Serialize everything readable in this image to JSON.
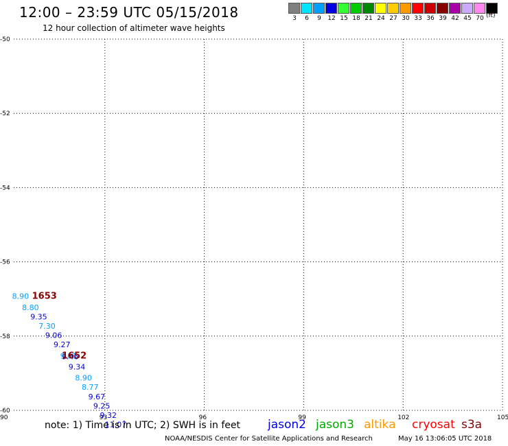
{
  "header": {
    "title": "12:00 – 23:59 UTC 05/15/2018",
    "subtitle": "12 hour collection of altimeter wave heights"
  },
  "legend": {
    "unit": "(ft)",
    "items": [
      {
        "label": "3",
        "color": "#808080"
      },
      {
        "label": "6",
        "color": "#00e5ff"
      },
      {
        "label": "9",
        "color": "#00a0ff"
      },
      {
        "label": "12",
        "color": "#0000e0"
      },
      {
        "label": "15",
        "color": "#33ff33"
      },
      {
        "label": "18",
        "color": "#00cc00"
      },
      {
        "label": "21",
        "color": "#008800"
      },
      {
        "label": "24",
        "color": "#ffff00"
      },
      {
        "label": "27",
        "color": "#ffcc00"
      },
      {
        "label": "30",
        "color": "#ff9900"
      },
      {
        "label": "33",
        "color": "#ff0000"
      },
      {
        "label": "36",
        "color": "#cc0000"
      },
      {
        "label": "39",
        "color": "#880000"
      },
      {
        "label": "42",
        "color": "#aa00aa"
      },
      {
        "label": "45",
        "color": "#ccaaff"
      },
      {
        "label": "70",
        "color": "#ff88ee"
      },
      {
        "label": "",
        "color": "#000000"
      }
    ]
  },
  "chart_data": {
    "type": "scatter",
    "title": "12:00 – 23:59 UTC 05/15/2018",
    "subtitle": "12 hour collection of altimeter wave heights",
    "xlim": [
      90,
      105
    ],
    "ylim": [
      -60,
      -50
    ],
    "x_ticks": [
      "90",
      "93",
      "96",
      "99",
      "102",
      "105"
    ],
    "y_ticks": [
      "-50",
      "-52",
      "-54",
      "-56",
      "-58",
      "-60"
    ],
    "grid": true,
    "points": [
      {
        "lon": 90.2,
        "lat": -57.0,
        "label": "8.90",
        "color": "#00a0ff"
      },
      {
        "lon": 90.5,
        "lat": -57.3,
        "label": "8.80",
        "color": "#00a0ff"
      },
      {
        "lon": 90.75,
        "lat": -57.55,
        "label": "9.35",
        "color": "#0000e0"
      },
      {
        "lon": 91.0,
        "lat": -57.8,
        "label": "7.30",
        "color": "#00a0ff"
      },
      {
        "lon": 91.2,
        "lat": -58.05,
        "label": "9.06",
        "color": "#0000e0"
      },
      {
        "lon": 91.45,
        "lat": -58.3,
        "label": "9.27",
        "color": "#0000e0"
      },
      {
        "lon": 91.65,
        "lat": -58.6,
        "label": "9.01",
        "color": "#00a0ff"
      },
      {
        "lon": 91.7,
        "lat": -58.62,
        "label": "9.46",
        "color": "#0000e0"
      },
      {
        "lon": 91.9,
        "lat": -58.9,
        "label": "9.34",
        "color": "#0000e0"
      },
      {
        "lon": 92.1,
        "lat": -59.2,
        "label": "8.90",
        "color": "#00a0ff"
      },
      {
        "lon": 92.3,
        "lat": -59.45,
        "label": "8.77",
        "color": "#00a0ff"
      },
      {
        "lon": 92.5,
        "lat": -59.7,
        "label": "9.67",
        "color": "#0000e0"
      },
      {
        "lon": 92.65,
        "lat": -59.95,
        "label": "9.25",
        "color": "#0000e0"
      },
      {
        "lon": 92.85,
        "lat": -60.2,
        "label": "9.32",
        "color": "#0000e0"
      },
      {
        "lon": 93.0,
        "lat": -60.45,
        "label": "11.07",
        "color": "#0000e0"
      }
    ],
    "time_labels": [
      {
        "lon": 90.8,
        "lat": -57.0,
        "label": "1653",
        "color": "#880000"
      },
      {
        "lon": 91.7,
        "lat": -58.6,
        "label": "1652",
        "color": "#880000"
      }
    ]
  },
  "note": "note: 1) Time is in UTC; 2) SWH is in feet",
  "satellites": [
    {
      "label": "jason2",
      "color": "#0000e0"
    },
    {
      "label": "jason3",
      "color": "#00aa00"
    },
    {
      "label": "altika",
      "color": "#ff9900"
    },
    {
      "label": "cryosat",
      "color": "#ff0000"
    },
    {
      "label": "s3a",
      "color": "#880000"
    }
  ],
  "footer": {
    "left": "NOAA/NESDIS Center for Satellite Applications and Research",
    "right": "May 16 13:06:05 UTC 2018"
  }
}
